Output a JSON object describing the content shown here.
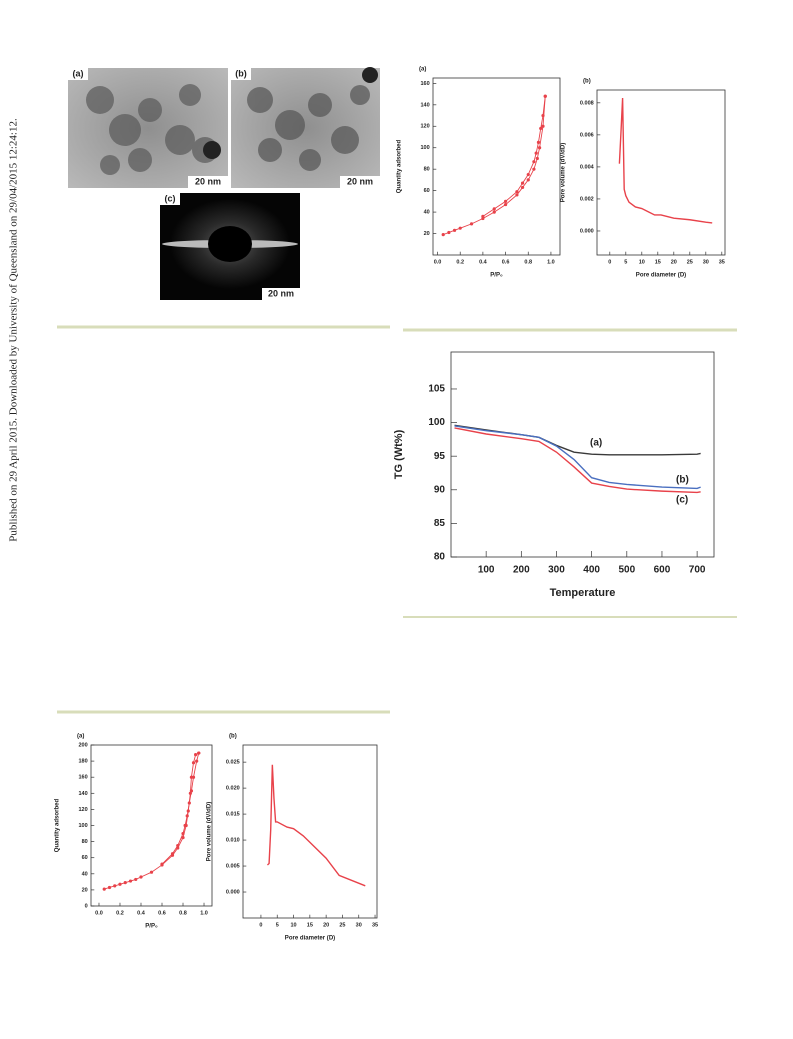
{
  "sidebar": "Published on 29 April 2015. Downloaded by University of Queensland on 29/04/2015 12:24:12.",
  "tem_figure": {
    "panels": [
      {
        "label": "(a)",
        "scale": "20 nm"
      },
      {
        "label": "(b)",
        "scale": "20 nm"
      },
      {
        "label": "(c)",
        "scale": "20 nm"
      }
    ]
  },
  "chart_data": [
    {
      "type": "line",
      "panel_label": "(a)",
      "x_label": "P/P₀",
      "y_label": "Quantity adsorbed",
      "markers": true,
      "xlim": [
        -0.04,
        1.08
      ],
      "ylim": [
        0,
        165
      ],
      "xticks": [
        {
          "value": 0,
          "label": "0.0"
        },
        0.2,
        0.4,
        0.6,
        0.8,
        {
          "value": 1,
          "label": "1.0"
        }
      ],
      "yticks": [
        20,
        40,
        60,
        80,
        100,
        120,
        140,
        160
      ],
      "series": [
        {
          "color": "#e8424a",
          "x": [
            0.05,
            0.1,
            0.15,
            0.2,
            0.3,
            0.4,
            0.5,
            0.6,
            0.7,
            0.75,
            0.8,
            0.85,
            0.88,
            0.9,
            0.93,
            0.95
          ],
          "values": [
            19,
            21,
            23,
            25,
            29,
            34,
            40,
            47,
            56,
            63,
            70,
            80,
            90,
            100,
            120,
            148
          ]
        },
        {
          "color": "#e8424a",
          "x": [
            0.95,
            0.93,
            0.91,
            0.89,
            0.87,
            0.85,
            0.8,
            0.75,
            0.7,
            0.6,
            0.5,
            0.4
          ],
          "values": [
            148,
            130,
            118,
            105,
            95,
            87,
            75,
            67,
            59,
            50,
            43,
            36
          ]
        }
      ]
    },
    {
      "type": "line",
      "panel_label": "(b)",
      "x_label": "Pore diameter (D)",
      "y_label": "Pore volume (dV/dD)",
      "markers": false,
      "xlim": [
        -4,
        36
      ],
      "ylim": [
        -0.0015,
        0.0088
      ],
      "xticks": [
        0,
        5,
        10,
        15,
        20,
        25,
        30,
        35
      ],
      "yticks": [
        {
          "value": 0,
          "label": "0.000"
        },
        {
          "value": 0.002,
          "label": "0.002"
        },
        {
          "value": 0.004,
          "label": "0.004"
        },
        {
          "value": 0.006,
          "label": "0.006"
        },
        {
          "value": 0.008,
          "label": "0.008"
        }
      ],
      "series": [
        {
          "color": "#e8424a",
          "x": [
            3,
            3.5,
            4,
            4.5,
            5,
            6,
            8,
            10,
            12,
            14,
            16,
            18,
            20,
            25,
            30,
            32
          ],
          "values": [
            0.0042,
            0.0062,
            0.0083,
            0.0026,
            0.0022,
            0.0018,
            0.0015,
            0.0014,
            0.0012,
            0.001,
            0.001,
            0.0009,
            0.0008,
            0.0007,
            0.00055,
            0.0005
          ]
        }
      ]
    },
    {
      "type": "line",
      "x_label": "Temperature",
      "y_label": "TG (Wt%)",
      "markers": false,
      "xlim": [
        0,
        748
      ],
      "ylim": [
        80,
        110.5
      ],
      "xticks": [
        100,
        200,
        300,
        400,
        500,
        600,
        700
      ],
      "yticks": [
        80,
        85,
        90,
        95,
        100,
        105
      ],
      "series": [
        {
          "name": "(a)",
          "color": "#3a3a3a",
          "x": [
            10,
            100,
            200,
            250,
            300,
            350,
            400,
            450,
            500,
            600,
            700,
            710
          ],
          "values": [
            99.6,
            98.9,
            98.2,
            97.8,
            96.6,
            95.6,
            95.3,
            95.2,
            95.2,
            95.2,
            95.3,
            95.4
          ]
        },
        {
          "name": "(b)",
          "color": "#4a6fc0",
          "x": [
            10,
            100,
            200,
            250,
            300,
            350,
            400,
            450,
            500,
            600,
            700,
            710
          ],
          "values": [
            99.5,
            98.8,
            98.2,
            97.8,
            96.5,
            94.5,
            91.8,
            91.1,
            90.8,
            90.4,
            90.2,
            90.4
          ]
        },
        {
          "name": "(c)",
          "color": "#e8424a",
          "x": [
            10,
            100,
            200,
            250,
            300,
            350,
            400,
            450,
            500,
            600,
            700,
            710
          ],
          "values": [
            99.2,
            98.3,
            97.6,
            97.2,
            95.6,
            93.4,
            91.0,
            90.5,
            90.1,
            89.8,
            89.6,
            89.7
          ]
        }
      ]
    },
    {
      "type": "line",
      "panel_label": "(a)",
      "x_label": "P/P₀",
      "y_label": "Quantity adsorbed",
      "markers": true,
      "xlim": [
        -0.076,
        1.076
      ],
      "ylim": [
        0,
        200
      ],
      "xticks": [
        {
          "value": 0,
          "label": "0.0"
        },
        0.2,
        0.4,
        0.6,
        0.8,
        {
          "value": 1,
          "label": "1.0"
        }
      ],
      "yticks": [
        0,
        20,
        40,
        60,
        80,
        100,
        120,
        140,
        160,
        180,
        200
      ],
      "series": [
        {
          "color": "#e8424a",
          "x": [
            0.05,
            0.1,
            0.15,
            0.2,
            0.25,
            0.3,
            0.35,
            0.4,
            0.5,
            0.6,
            0.7,
            0.75,
            0.8,
            0.83,
            0.85,
            0.87,
            0.88,
            0.9,
            0.92,
            0.95
          ],
          "values": [
            21,
            23,
            25,
            27,
            29,
            31,
            33,
            36,
            42,
            51,
            63,
            72,
            85,
            100,
            118,
            140,
            160,
            178,
            188,
            190
          ]
        },
        {
          "color": "#e8424a",
          "x": [
            0.95,
            0.93,
            0.9,
            0.88,
            0.86,
            0.84,
            0.82,
            0.8,
            0.75,
            0.7,
            0.6
          ],
          "values": [
            190,
            180,
            160,
            143,
            128,
            112,
            100,
            90,
            75,
            65,
            52
          ]
        }
      ]
    },
    {
      "type": "line",
      "panel_label": "(b)",
      "x_label": "Pore diameter (D)",
      "y_label": "Pore volume (dV/dD)",
      "markers": false,
      "xlim": [
        -5.5,
        35.6
      ],
      "ylim": [
        -0.005,
        0.0283
      ],
      "xticks": [
        0,
        5,
        10,
        15,
        20,
        25,
        30,
        35
      ],
      "yticks": [
        {
          "value": 0,
          "label": "0.000"
        },
        0.005,
        {
          "value": 0.01,
          "label": "0.010"
        },
        0.015,
        {
          "value": 0.02,
          "label": "0.020"
        },
        0.025
      ],
      "series": [
        {
          "color": "#e8424a",
          "x": [
            2,
            2.5,
            3,
            3.5,
            4,
            4.5,
            5,
            8,
            10,
            13,
            20,
            24,
            32
          ],
          "values": [
            0.0052,
            0.0055,
            0.012,
            0.0245,
            0.018,
            0.0135,
            0.0135,
            0.0125,
            0.0122,
            0.0108,
            0.0065,
            0.0032,
            0.0012
          ]
        }
      ]
    }
  ]
}
